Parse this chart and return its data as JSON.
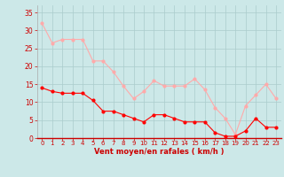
{
  "x": [
    0,
    1,
    2,
    3,
    4,
    5,
    6,
    7,
    8,
    9,
    10,
    11,
    12,
    13,
    14,
    15,
    16,
    17,
    18,
    19,
    20,
    21,
    22,
    23
  ],
  "y_avg": [
    14,
    13,
    12.5,
    12.5,
    12.5,
    10.5,
    7.5,
    7.5,
    6.5,
    5.5,
    4.5,
    6.5,
    6.5,
    5.5,
    4.5,
    4.5,
    4.5,
    1.5,
    0.5,
    0.5,
    2,
    5.5,
    3,
    3
  ],
  "y_gust": [
    32,
    26.5,
    27.5,
    27.5,
    27.5,
    21.5,
    21.5,
    18.5,
    14.5,
    11,
    13,
    16,
    14.5,
    14.5,
    14.5,
    16.5,
    13.5,
    8.5,
    5.5,
    1,
    9,
    12,
    15,
    11
  ],
  "avg_color": "#ff0000",
  "gust_color": "#ffaaaa",
  "bg_color": "#cce8e8",
  "grid_color": "#aacccc",
  "xlabel": "Vent moyen/en rafales ( km/h )",
  "xlabel_color": "#cc0000",
  "tick_color": "#cc0000",
  "ylim": [
    0,
    37
  ],
  "yticks": [
    0,
    5,
    10,
    15,
    20,
    25,
    30,
    35
  ],
  "xlim": [
    -0.5,
    23.5
  ],
  "xticks": [
    0,
    1,
    2,
    3,
    4,
    5,
    6,
    7,
    8,
    9,
    10,
    11,
    12,
    13,
    14,
    15,
    16,
    17,
    18,
    19,
    20,
    21,
    22,
    23
  ]
}
